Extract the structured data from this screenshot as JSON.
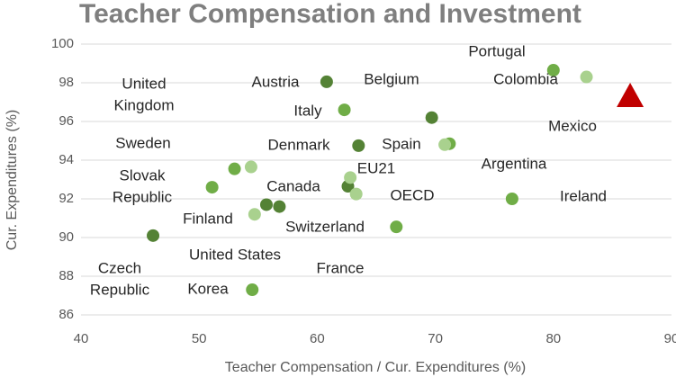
{
  "chart_data": {
    "type": "scatter",
    "title": "Teacher Compensation and Investment",
    "x_label": "Teacher Compensation / Cur. Expenditures (%)",
    "y_label": "Cur. Expenditures (%)",
    "xlim": [
      40,
      90
    ],
    "ylim": [
      86,
      100
    ],
    "xticks": [
      40,
      50,
      60,
      70,
      80,
      90
    ],
    "yticks": [
      86,
      88,
      90,
      92,
      94,
      96,
      98,
      100
    ],
    "grid": true,
    "series": [
      {
        "color": "#548235",
        "marker": "circle",
        "x": [
          60.8,
          69.7,
          63.5,
          62.6,
          55.7,
          56.8,
          46.1
        ],
        "values": [
          98.05,
          96.2,
          94.75,
          92.65,
          91.7,
          91.6,
          90.1
        ]
      },
      {
        "color": "#70ad47",
        "marker": "circle",
        "x": [
          80.0,
          62.3,
          76.5,
          51.1,
          71.2,
          66.7,
          54.5,
          53.0
        ],
        "values": [
          98.65,
          96.6,
          92.0,
          92.6,
          94.85,
          90.55,
          87.3,
          93.55
        ]
      },
      {
        "color": "#a9d18e",
        "marker": "circle",
        "x": [
          82.8,
          54.4,
          62.8,
          63.3,
          54.7,
          70.8
        ],
        "values": [
          98.3,
          93.65,
          93.1,
          92.25,
          91.2,
          94.8
        ]
      },
      {
        "color": "#c00000",
        "marker": "triangle",
        "x": [
          86.5
        ],
        "values": [
          97.3
        ]
      }
    ],
    "annotations": [
      [
        "Portugal"
      ],
      [
        "Colombia"
      ],
      [
        "Mexico"
      ],
      [
        "Argentina"
      ],
      [
        "Ireland"
      ],
      [
        "Belgium"
      ],
      [
        "Austria"
      ],
      [
        "Italy"
      ],
      [
        "Spain"
      ],
      [
        "Denmark"
      ],
      [
        "EU21"
      ],
      [
        "Canada"
      ],
      [
        "OECD"
      ],
      [
        "Switzerland"
      ],
      [
        "Finland"
      ],
      [
        "United States"
      ],
      [
        "France"
      ],
      [
        "Korea"
      ],
      [
        "Sweden"
      ],
      [
        "Slovak",
        "Republic"
      ],
      [
        "United",
        "Kingdom"
      ],
      [
        "Czech",
        "Republic"
      ]
    ]
  }
}
